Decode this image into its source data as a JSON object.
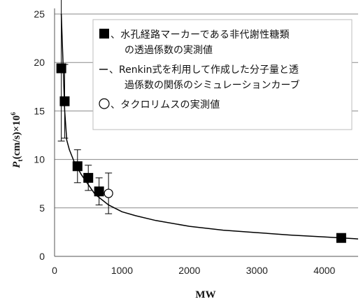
{
  "chart_data": {
    "type": "scatter",
    "xlabel": "MW",
    "ylabel": {
      "base": "P",
      "subscript": "t",
      "rest": "(cm/s)×10",
      "superscript": "6"
    },
    "xlim": [
      0,
      4500
    ],
    "ylim": [
      0,
      25
    ],
    "x_ticks": [
      "0",
      "1000",
      "2000",
      "3000",
      "4000"
    ],
    "y_ticks": [
      "0",
      "5",
      "10",
      "15",
      "20",
      "25"
    ],
    "grid": "horizontal",
    "legend_position": "top-right",
    "series": [
      {
        "name": "、水孔経路マーカーである非代謝性糖類 の透過係数の実測値",
        "marker": "filled-square",
        "color": "#000000",
        "points": [
          {
            "x": 100,
            "y": 19.4,
            "err": 7.5
          },
          {
            "x": 150,
            "y": 16.0,
            "err": 3.8
          },
          {
            "x": 340,
            "y": 9.3,
            "err": 1.7
          },
          {
            "x": 500,
            "y": 8.1,
            "err": 1.3
          },
          {
            "x": 660,
            "y": 6.7,
            "err": 1.4
          },
          {
            "x": 4250,
            "y": 1.9,
            "err": 0.0
          }
        ]
      },
      {
        "name": "、Renkin式を利用して作成した分子量と透過係数の関係のシミュレーションカーブ",
        "type": "line",
        "color": "#000000",
        "points": [
          {
            "x": 100,
            "y": 25.0
          },
          {
            "x": 120,
            "y": 21.0
          },
          {
            "x": 150,
            "y": 15.0
          },
          {
            "x": 180,
            "y": 12.0
          },
          {
            "x": 220,
            "y": 11.0
          },
          {
            "x": 300,
            "y": 9.6
          },
          {
            "x": 400,
            "y": 8.4
          },
          {
            "x": 500,
            "y": 7.4
          },
          {
            "x": 600,
            "y": 6.4
          },
          {
            "x": 800,
            "y": 5.3
          },
          {
            "x": 1000,
            "y": 4.6
          },
          {
            "x": 1200,
            "y": 4.2
          },
          {
            "x": 1500,
            "y": 3.7
          },
          {
            "x": 2000,
            "y": 3.1
          },
          {
            "x": 2500,
            "y": 2.7
          },
          {
            "x": 3000,
            "y": 2.45
          },
          {
            "x": 3500,
            "y": 2.2
          },
          {
            "x": 4000,
            "y": 2.0
          },
          {
            "x": 4500,
            "y": 1.8
          }
        ]
      },
      {
        "name": "、タクロリムスの実測値",
        "marker": "open-circle",
        "color": "#000000",
        "points": [
          {
            "x": 800,
            "y": 6.5,
            "err": 2.1
          }
        ]
      }
    ],
    "legend": [
      {
        "marker": "filled-square",
        "lines": [
          "、水孔経路マーカーである非代謝性糖類",
          "の透過係数の実測値"
        ]
      },
      {
        "marker": "dash",
        "lines": [
          "、Renkin式を利用して作成した分子量と透",
          "過係数の関係のシミュレーションカーブ"
        ]
      },
      {
        "marker": "open-circle",
        "lines": [
          "、タクロリムスの実測値"
        ]
      }
    ]
  }
}
